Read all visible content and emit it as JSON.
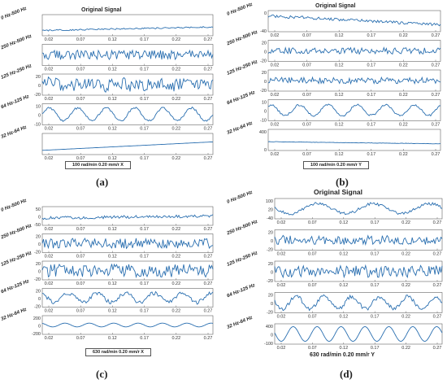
{
  "figure": {
    "panels": [
      {
        "id": "a",
        "caption": "(a)",
        "title": "Original Signal",
        "footer": "100 rad/min 0.20 mm/r X"
      },
      {
        "id": "b",
        "caption": "(b)",
        "title": "Original Signal",
        "footer": "100 rad/min 0.20 mm/r Y"
      },
      {
        "id": "c",
        "caption": "(c)",
        "title": "",
        "footer": "630 rad/min 0.20 mm/r X"
      },
      {
        "id": "d",
        "caption": "(d)",
        "title": "Original Signal",
        "footer": "630 rad/min 0.20 mm/r Y"
      }
    ]
  },
  "chart_data": [
    {
      "id": "a",
      "type": "line",
      "title": "Original Signal",
      "x_ticks": [
        "0.02",
        "0.07",
        "0.12",
        "0.17",
        "0.22",
        "0.27"
      ],
      "bands": [
        {
          "label": "0 Hz-500 Hz",
          "y_ticks": [],
          "ylim": [
            -60,
            60
          ],
          "base": -30,
          "trend": 20,
          "amp": 4,
          "wave": 0
        },
        {
          "label": "250 Hz-500 Hz",
          "y_ticks": [],
          "ylim": [
            -20,
            20
          ],
          "base": 0,
          "trend": 0,
          "amp": 9,
          "wave": 0
        },
        {
          "label": "125 Hz-250 Hz",
          "y_ticks": [
            "20",
            "0",
            "-20"
          ],
          "ylim": [
            -20,
            20
          ],
          "base": 0,
          "trend": 0,
          "amp": 12,
          "wave": 3
        },
        {
          "label": "64 Hz-125 Hz",
          "y_ticks": [
            "10",
            "0",
            "-10"
          ],
          "ylim": [
            -10,
            10
          ],
          "base": 0,
          "trend": 0,
          "amp": 1,
          "wave": 6
        },
        {
          "label": "32 Hz-64 Hz",
          "y_ticks": [],
          "ylim": [
            -100,
            100
          ],
          "base": -60,
          "trend": 80,
          "amp": 0,
          "wave": 0
        }
      ]
    },
    {
      "id": "b",
      "type": "line",
      "title": "Original Signal",
      "x_ticks": [
        "0.02",
        "0.07",
        "0.12",
        "0.17",
        "0.22",
        "0.27"
      ],
      "bands": [
        {
          "label": "0 Hz-500 Hz",
          "y_ticks": [
            "0",
            "-40"
          ],
          "ylim": [
            -50,
            10
          ],
          "base": -5,
          "trend": -25,
          "amp": 4,
          "wave": 0
        },
        {
          "label": "250 Hz-500 Hz",
          "y_ticks": [
            "20",
            "0",
            "-20"
          ],
          "ylim": [
            -20,
            20
          ],
          "base": 0,
          "trend": 0,
          "amp": 6,
          "wave": 0
        },
        {
          "label": "125 Hz-250 Hz",
          "y_ticks": [
            "20",
            "0",
            "-20"
          ],
          "ylim": [
            -20,
            20
          ],
          "base": 0,
          "trend": 0,
          "amp": 6,
          "wave": 0
        },
        {
          "label": "64 Hz-125 Hz",
          "y_ticks": [
            "10",
            "0",
            "-10"
          ],
          "ylim": [
            -10,
            10
          ],
          "base": 0,
          "trend": 0,
          "amp": 1,
          "wave": 5
        },
        {
          "label": "32 Hz-64 Hz",
          "y_ticks": [
            "400",
            "0"
          ],
          "ylim": [
            -200,
            400
          ],
          "base": 50,
          "trend": -60,
          "amp": 5,
          "wave": 0
        }
      ]
    },
    {
      "id": "c",
      "type": "line",
      "title": "",
      "x_ticks": [
        "0.02",
        "0.07",
        "0.12",
        "0.17",
        "0.22",
        "0.27"
      ],
      "bands": [
        {
          "label": "0 Hz-500 Hz",
          "y_ticks": [
            "50",
            "0",
            "-50"
          ],
          "ylim": [
            -50,
            50
          ],
          "base": -10,
          "trend": 10,
          "amp": 8,
          "wave": 0
        },
        {
          "label": "250 Hz-500 Hz",
          "y_ticks": [
            "20",
            "0",
            "-20"
          ],
          "ylim": [
            -20,
            20
          ],
          "base": 0,
          "trend": 0,
          "amp": 11,
          "wave": 0
        },
        {
          "label": "125 Hz-250 Hz",
          "y_ticks": [
            "20",
            "0",
            "-20"
          ],
          "ylim": [
            -20,
            20
          ],
          "base": 0,
          "trend": 0,
          "amp": 14,
          "wave": 0
        },
        {
          "label": "64 Hz-125 Hz",
          "y_ticks": [
            "20",
            "0",
            "-20"
          ],
          "ylim": [
            -20,
            20
          ],
          "base": 0,
          "trend": 0,
          "amp": 4,
          "wave": 10
        },
        {
          "label": "32 Hz-64 Hz",
          "y_ticks": [
            "200",
            "0",
            "-200"
          ],
          "ylim": [
            -200,
            200
          ],
          "base": 0,
          "trend": 0,
          "amp": 0,
          "wave": 40
        }
      ]
    },
    {
      "id": "d",
      "type": "line",
      "title": "Original Signal",
      "x_ticks": [
        "0.02",
        "0.07",
        "0.12",
        "0.17",
        "0.22",
        "0.27"
      ],
      "bands": [
        {
          "label": "0 Hz-500 Hz",
          "y_ticks": [
            "100",
            "20",
            "-40"
          ],
          "ylim": [
            -40,
            120
          ],
          "base": 40,
          "trend": 0,
          "amp": 12,
          "wave": 40
        },
        {
          "label": "250 Hz-500 Hz",
          "y_ticks": [
            "20",
            "0",
            "-20"
          ],
          "ylim": [
            -20,
            20
          ],
          "base": 0,
          "trend": 0,
          "amp": 9,
          "wave": 0
        },
        {
          "label": "125 Hz-250 Hz",
          "y_ticks": [
            "20",
            "0",
            "-20"
          ],
          "ylim": [
            -20,
            20
          ],
          "base": 0,
          "trend": 0,
          "amp": 12,
          "wave": 0
        },
        {
          "label": "64 Hz-125 Hz",
          "y_ticks": [
            "20",
            "0",
            "-20"
          ],
          "ylim": [
            -20,
            20
          ],
          "base": 0,
          "trend": 0,
          "amp": 4,
          "wave": 12
        },
        {
          "label": "32 Hz-64 Hz",
          "y_ticks": [
            "400",
            "0",
            "-100"
          ],
          "ylim": [
            -100,
            400
          ],
          "base": 150,
          "trend": 0,
          "amp": 0,
          "wave": 180
        }
      ]
    }
  ],
  "colors": {
    "line": "#2a6fb0",
    "axis": "#444444",
    "grid": "#dddddd"
  }
}
